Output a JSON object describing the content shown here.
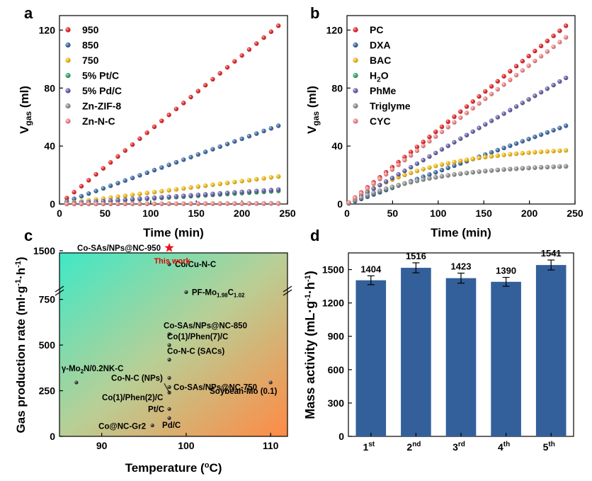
{
  "panels": {
    "a": "a",
    "b": "b",
    "c": "c",
    "d": "d"
  },
  "chart_data": [
    {
      "panel": "a",
      "type": "scatter",
      "xlabel": "Time (min)",
      "ylabel_main": "V",
      "ylabel_sub": "gas",
      "ylabel_tail": " (ml)",
      "xlim": [
        0,
        250
      ],
      "ylim": [
        0,
        130
      ],
      "xticks": [
        "0",
        "50",
        "100",
        "150",
        "200",
        "250"
      ],
      "yticks": [
        "0",
        "40",
        "80",
        "120"
      ],
      "series": [
        {
          "name": "950",
          "color": "#e31a1c",
          "final": 123,
          "shape": "linear"
        },
        {
          "name": "850",
          "color": "#2e5f9e",
          "final": 54,
          "shape": "linear"
        },
        {
          "name": "750",
          "color": "#f2b705",
          "final": 19,
          "shape": "linear"
        },
        {
          "name": "5% Pt/C",
          "color": "#2ca25f",
          "final": 9,
          "shape": "linear"
        },
        {
          "name": "5% Pd/C",
          "color": "#5b57a6",
          "final": 10,
          "shape": "linear"
        },
        {
          "name": "Zn-ZIF-8",
          "color": "#8c8c8c",
          "final": 0.5,
          "shape": "linear"
        },
        {
          "name": "Zn-N-C",
          "color": "#f08080",
          "final": 0.3,
          "shape": "linear"
        }
      ],
      "x_start": 8,
      "x_end": 240,
      "n_points": 30
    },
    {
      "panel": "b",
      "type": "scatter",
      "xlabel": "Time (min)",
      "ylabel_main": "V",
      "ylabel_sub": "gas",
      "ylabel_tail": " (ml)",
      "xlim": [
        0,
        250
      ],
      "ylim": [
        0,
        130
      ],
      "xticks": [
        "0",
        "50",
        "100",
        "150",
        "200",
        "250"
      ],
      "yticks": [
        "0",
        "40",
        "80",
        "120"
      ],
      "series": [
        {
          "name": "PC",
          "color": "#e31a1c",
          "final": 123,
          "shape": "linear"
        },
        {
          "name": "DXA",
          "color": "#2e5f9e",
          "final": 54,
          "shape": "linear"
        },
        {
          "name": "BAC",
          "color": "#f2b705",
          "final": 37,
          "shape": "saturating"
        },
        {
          "name": "H2O",
          "name_main": "H",
          "name_sub": "2",
          "name_tail": "O",
          "color": "#2ca25f",
          "final": 26,
          "shape": "saturating"
        },
        {
          "name": "PhMe",
          "color": "#5b57a6",
          "final": 87,
          "shape": "linear"
        },
        {
          "name": "Triglyme",
          "color": "#8c8c8c",
          "final": 26,
          "shape": "saturating"
        },
        {
          "name": "CYC",
          "color": "#f08080",
          "final": 115,
          "shape": "linear"
        }
      ],
      "x_start": 2,
      "x_end": 240,
      "n_points": 36
    },
    {
      "panel": "c",
      "type": "scatter",
      "xlabel": "Temperature (",
      "xlabel_sup": "o",
      "xlabel_tail": "C)",
      "ylabel": "Gas production rate (ml·g",
      "ylabel_sup1": "-1",
      "ylabel_mid": "·h",
      "ylabel_sup2": "-1",
      "ylabel_tail": ")",
      "xlim": [
        85,
        112
      ],
      "xticks": [
        "90",
        "100",
        "110"
      ],
      "yticks": [
        "0",
        "250",
        "500",
        "750",
        "1500"
      ],
      "axis_break": true,
      "highlight_label": "This work",
      "points": [
        {
          "label": "Co-SAs/NPs@NC-950",
          "x": 98,
          "y": 1541,
          "marker": "star"
        },
        {
          "label": "Co/Cu-N-C",
          "x": 98,
          "y": 1310
        },
        {
          "label": "PF-Mo",
          "sub1": "1.98",
          "mid": "C",
          "sub2": "1.02",
          "x": 100,
          "y": 790
        },
        {
          "label": "Co-SAs/NPs@NC-850",
          "x": 98,
          "y": 560
        },
        {
          "label": "Co(1)/Phen(7)/C",
          "x": 98,
          "y": 500
        },
        {
          "label": "Co-N-C (SACs)",
          "x": 98,
          "y": 420
        },
        {
          "label": "γ-Mo",
          "sub1": "2",
          "mid": "N/0.2NK-C",
          "x": 87,
          "y": 295
        },
        {
          "label": "Co-N-C (NPs)",
          "x": 98,
          "y": 320
        },
        {
          "label": "Co-SAs/NPs@NC-750",
          "x": 98,
          "y": 270
        },
        {
          "label": "Soybean-Mo (0.1)",
          "x": 110,
          "y": 295
        },
        {
          "label": "Co(1)/Phen(2)/C",
          "x": 98,
          "y": 240
        },
        {
          "label": "Pt/C",
          "x": 98,
          "y": 150
        },
        {
          "label": "Pd/C",
          "x": 98,
          "y": 100
        },
        {
          "label": "Co@NC-Gr2",
          "x": 96,
          "y": 60
        }
      ]
    },
    {
      "panel": "d",
      "type": "bar",
      "xlabel": "",
      "ylabel": "Mass activity (mL·g",
      "ylabel_sup1": "-1",
      "ylabel_mid": "·h",
      "ylabel_sup2": "-1",
      "ylabel_tail": ")",
      "ylim": [
        0,
        1650
      ],
      "yticks": [
        "0",
        "300",
        "600",
        "900",
        "1200",
        "1500"
      ],
      "categories": [
        {
          "num": "1",
          "sup": "st"
        },
        {
          "num": "2",
          "sup": "nd"
        },
        {
          "num": "3",
          "sup": "rd"
        },
        {
          "num": "4",
          "sup": "th"
        },
        {
          "num": "5",
          "sup": "th"
        }
      ],
      "values": [
        1404,
        1516,
        1423,
        1390,
        1541
      ],
      "errors": [
        40,
        45,
        45,
        40,
        45
      ],
      "value_labels": [
        "1404",
        "1516",
        "1423",
        "1390",
        "1541"
      ],
      "bar_color": "#33609a"
    }
  ]
}
